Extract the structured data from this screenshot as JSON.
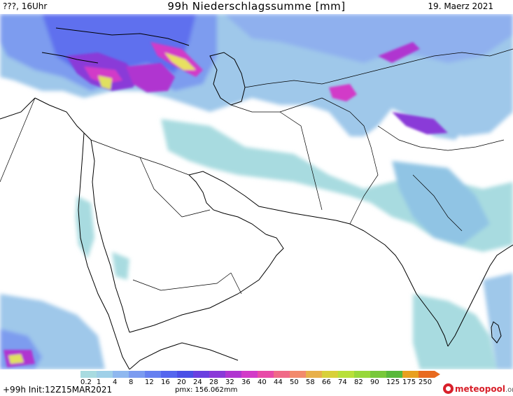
{
  "header": {
    "location_time": "???, 16Uhr",
    "title": "99h Niederschlagssumme [mm]",
    "date": "19. Maerz 2021"
  },
  "legend": {
    "labels": [
      "0.2",
      "1",
      "4",
      "8",
      "12",
      "16",
      "20",
      "24",
      "28",
      "32",
      "36",
      "40",
      "44",
      "50",
      "58",
      "66",
      "74",
      "82",
      "90",
      "125",
      "175",
      "250"
    ],
    "colors": [
      "#a8dbe0",
      "#9fd0e8",
      "#8fb8ef",
      "#7b9bf0",
      "#6680f0",
      "#5466ee",
      "#4a4fe6",
      "#6a3fe0",
      "#8a3ad8",
      "#b036d0",
      "#d23ac8",
      "#e84aa8",
      "#f06a88",
      "#f28a6c",
      "#e8b04a",
      "#d8d03a",
      "#b8e03a",
      "#98d83a",
      "#78c83a",
      "#58b83a",
      "#e8a020",
      "#e86a20"
    ],
    "unit": "mm"
  },
  "footer": {
    "init": "+99h  Init:12Z15MAR2021",
    "pmx": "pmx: 156.062mm",
    "logo_main": "meteopool",
    "logo_suffix": ".org"
  },
  "map": {
    "region": "Middle East / Arabian Peninsula / South Asia",
    "colors": {
      "light": "#a8dbe0",
      "medium": "#7fa8ea",
      "blue": "#5a6cec",
      "purple": "#8a3ad8",
      "magenta": "#d23ac8",
      "yellow": "#e8e060",
      "border": "#000000"
    }
  }
}
